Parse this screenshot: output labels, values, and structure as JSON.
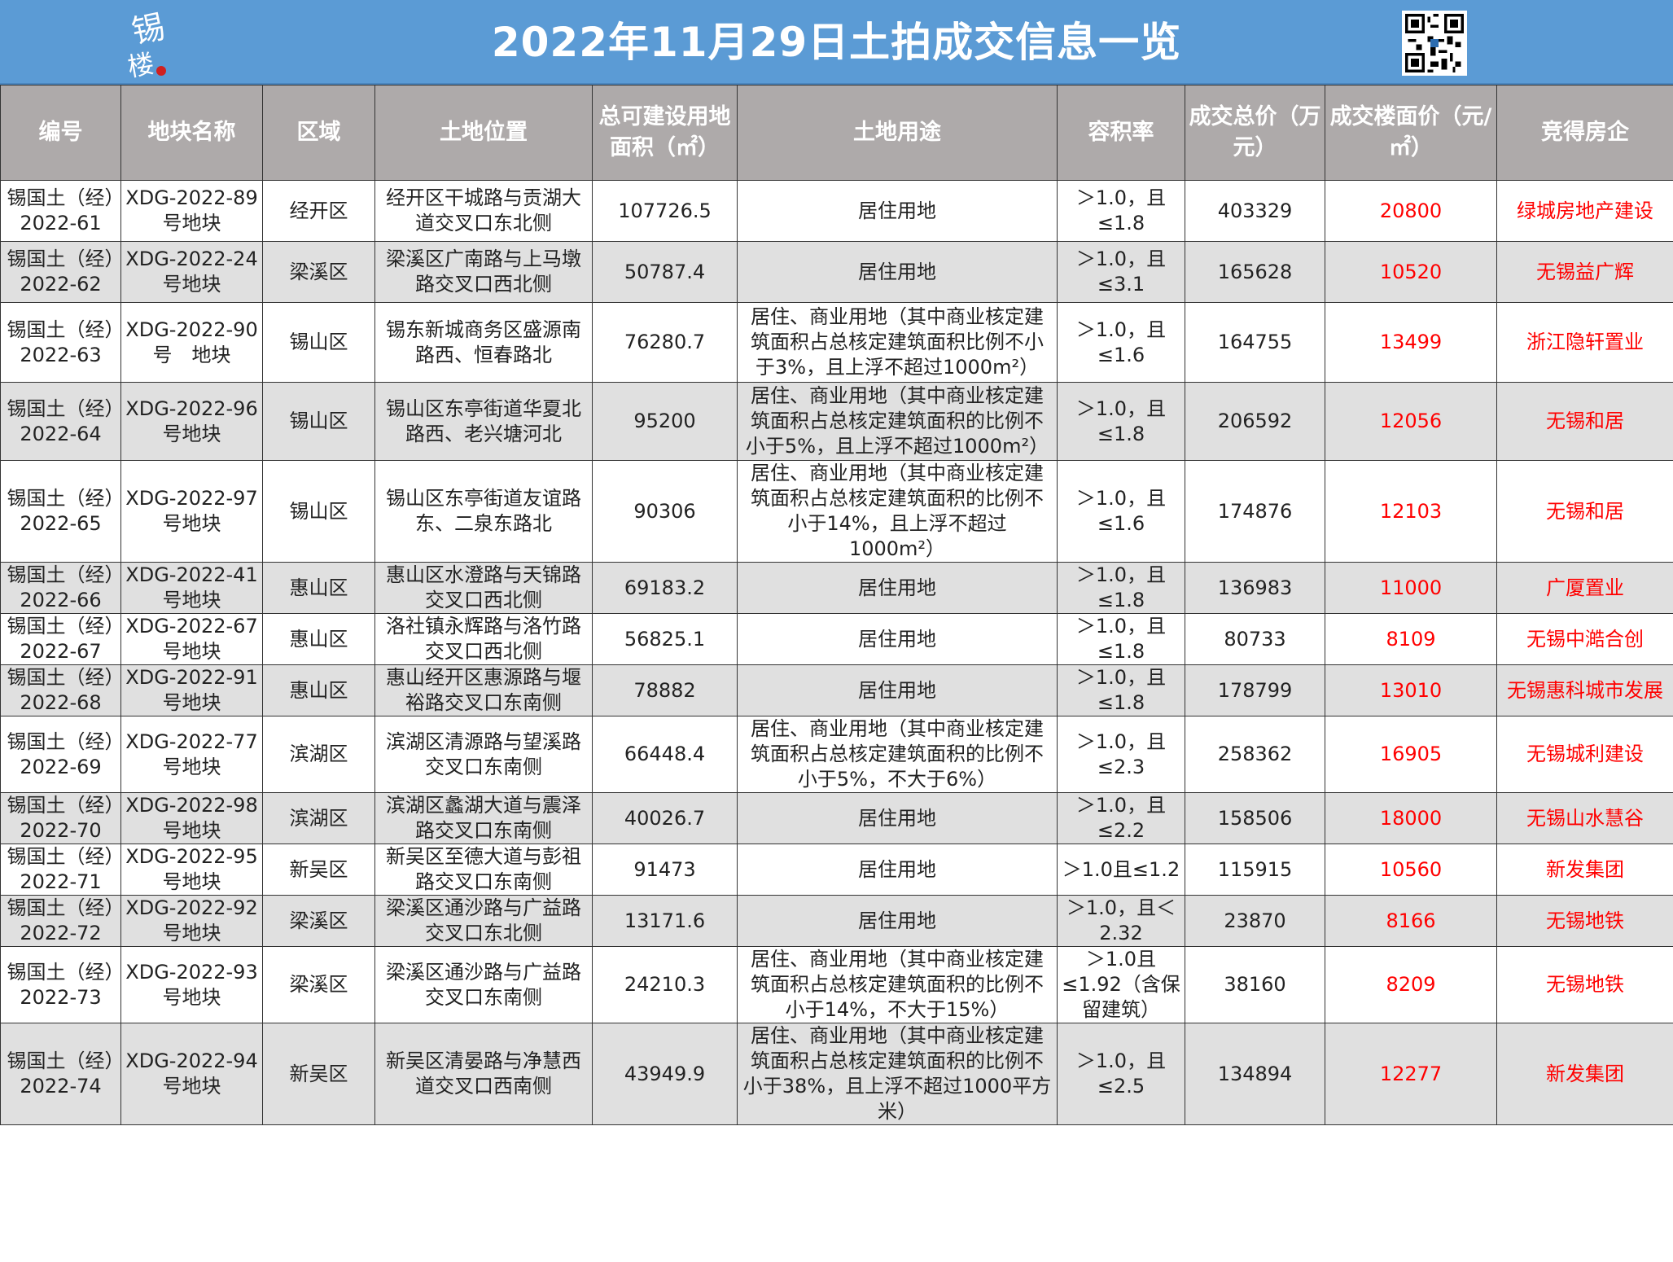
{
  "header": {
    "title": "2022年11月29日土拍成交信息一览",
    "bg_color": "#5b9bd5"
  },
  "table": {
    "columns": [
      "编号",
      "地块名称",
      "区域",
      "土地位置",
      "总可建设用地面积（㎡）",
      "土地用途",
      "容积率",
      "成交总价（万元）",
      "成交楼面价（元/㎡）",
      "竞得房企"
    ],
    "highlight_color": "#ff0000",
    "header_bg": "#aeaaaa",
    "rows": [
      {
        "id": "锡国土（经）2022-61",
        "name": "XDG-2022-89号地块",
        "area": "经开区",
        "location": "经开区干城路与贡湖大道交叉口东北侧",
        "land_area": "107726.5",
        "usage": "居住用地",
        "far": "＞1.0，且≤1.8",
        "total_price": "403329",
        "floor_price": "20800",
        "winner": "绿城房地产建设"
      },
      {
        "id": "锡国土（经）2022-62",
        "name": "XDG-2022-24号地块",
        "area": "梁溪区",
        "location": "梁溪区广南路与上马墩路交叉口西北侧",
        "land_area": "50787.4",
        "usage": "居住用地",
        "far": "＞1.0，且≤3.1",
        "total_price": "165628",
        "floor_price": "10520",
        "winner": "无锡益广辉"
      },
      {
        "id": "锡国土（经）2022-63",
        "name": "XDG-2022-90号　地块",
        "area": "锡山区",
        "location": "锡东新城商务区盛源南路西、恒春路北",
        "land_area": "76280.7",
        "usage": "居住、商业用地（其中商业核定建筑面积占总核定建筑面积比例不小于3%，且上浮不超过1000m²）",
        "far": "＞1.0，且≤1.6",
        "total_price": "164755",
        "floor_price": "13499",
        "winner": "浙江隐轩置业"
      },
      {
        "id": "锡国土（经）2022-64",
        "name": "XDG-2022-96号地块",
        "area": "锡山区",
        "location": "锡山区东亭街道华夏北路西、老兴塘河北",
        "land_area": "95200",
        "usage": "居住、商业用地（其中商业核定建筑面积占总核定建筑面积的比例不小于5%，且上浮不超过1000m²）",
        "far": "＞1.0，且≤1.8",
        "total_price": "206592",
        "floor_price": "12056",
        "winner": "无锡和居"
      },
      {
        "id": "锡国土（经）2022-65",
        "name": "XDG-2022-97号地块",
        "area": "锡山区",
        "location": "锡山区东亭街道友谊路东、二泉东路北",
        "land_area": "90306",
        "usage": "居住、商业用地（其中商业核定建筑面积占总核定建筑面积的比例不小于14%，且上浮不超过　1000m²）",
        "far": "＞1.0，且≤1.6",
        "total_price": "174876",
        "floor_price": "12103",
        "winner": "无锡和居"
      },
      {
        "id": "锡国土（经）2022-66",
        "name": "XDG-2022-41号地块",
        "area": "惠山区",
        "location": "惠山区水澄路与天锦路交叉口西北侧",
        "land_area": "69183.2",
        "usage": "居住用地",
        "far": "＞1.0，且≤1.8",
        "total_price": "136983",
        "floor_price": "11000",
        "winner": "广厦置业"
      },
      {
        "id": "锡国土（经）2022-67",
        "name": "XDG-2022-67号地块",
        "area": "惠山区",
        "location": "洛社镇永辉路与洛竹路交叉口西北侧",
        "land_area": "56825.1",
        "usage": "居住用地",
        "far": "＞1.0，且≤1.8",
        "total_price": "80733",
        "floor_price": "8109",
        "winner": "无锡中澔合创"
      },
      {
        "id": "锡国土（经）2022-68",
        "name": "XDG-2022-91号地块",
        "area": "惠山区",
        "location": "惠山经开区惠源路与堰裕路交叉口东南侧",
        "land_area": "78882",
        "usage": "居住用地",
        "far": "＞1.0，且≤1.8",
        "total_price": "178799",
        "floor_price": "13010",
        "winner": "无锡惠科城市发展"
      },
      {
        "id": "锡国土（经）2022-69",
        "name": "XDG-2022-77号地块",
        "area": "滨湖区",
        "location": "滨湖区清源路与望溪路交叉口东南侧",
        "land_area": "66448.4",
        "usage": "居住、商业用地（其中商业核定建筑面积占总核定建筑面积的比例不小于5%，不大于6%）",
        "far": "＞1.0，且≤2.3",
        "total_price": "258362",
        "floor_price": "16905",
        "winner": "无锡城利建设"
      },
      {
        "id": "锡国土（经）2022-70",
        "name": "XDG-2022-98号地块",
        "area": "滨湖区",
        "location": "滨湖区蠡湖大道与震泽路交叉口东南侧",
        "land_area": "40026.7",
        "usage": "居住用地",
        "far": "＞1.0，且≤2.2",
        "total_price": "158506",
        "floor_price": "18000",
        "winner": "无锡山水慧谷"
      },
      {
        "id": "锡国土（经）2022-71",
        "name": "XDG-2022-95号地块",
        "area": "新吴区",
        "location": "新吴区至德大道与彭祖路交叉口东南侧",
        "land_area": "91473",
        "usage": "居住用地",
        "far": "＞1.0且≤1.2",
        "total_price": "115915",
        "floor_price": "10560",
        "winner": "新发集团"
      },
      {
        "id": "锡国土（经）2022-72",
        "name": "XDG-2022-92号地块",
        "area": "梁溪区",
        "location": "梁溪区通沙路与广益路交叉口东北侧",
        "land_area": "13171.6",
        "usage": "居住用地",
        "far": "＞1.0，且＜2.32",
        "total_price": "23870",
        "floor_price": "8166",
        "winner": "无锡地铁"
      },
      {
        "id": "锡国土（经）2022-73",
        "name": "XDG-2022-93号地块",
        "area": "梁溪区",
        "location": "梁溪区通沙路与广益路交叉口东南侧",
        "land_area": "24210.3",
        "usage": "居住、商业用地（其中商业核定建筑面积占总核定建筑面积的比例不小于14%，不大于15%）",
        "far": "＞1.0且≤1.92（含保留建筑）",
        "total_price": "38160",
        "floor_price": "8209",
        "winner": "无锡地铁"
      },
      {
        "id": "锡国土（经）2022-74",
        "name": "XDG-2022-94号地块",
        "area": "新吴区",
        "location": "新吴区清晏路与净慧西道交叉口西南侧",
        "land_area": "43949.9",
        "usage": "居住、商业用地（其中商业核定建筑面积占总核定建筑面积的比例不小于38%，且上浮不超过1000平方米）",
        "far": "＞1.0，且≤2.5",
        "total_price": "134894",
        "floor_price": "12277",
        "winner": "新发集团"
      }
    ]
  }
}
